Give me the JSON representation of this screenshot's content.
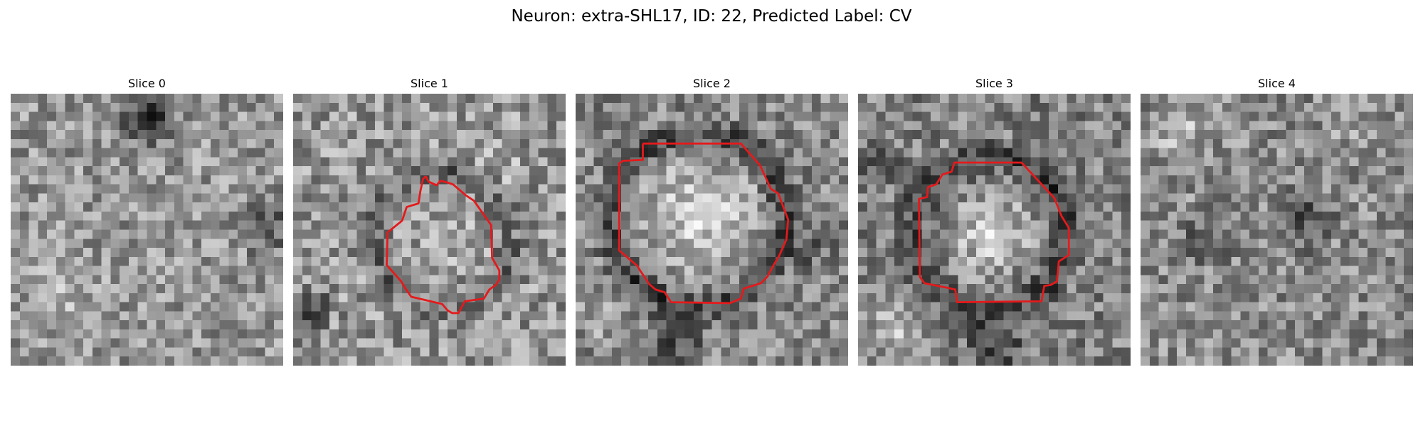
{
  "figure": {
    "title": "Neuron: extra-SHL17, ID: 22, Predicted Label: CV"
  },
  "colors": {
    "background": "#ffffff",
    "contour": "#e41a1c",
    "colormap": "grayscale"
  },
  "panels": [
    {
      "title": "Slice 0",
      "has_contour": false
    },
    {
      "title": "Slice 1",
      "has_contour": true
    },
    {
      "title": "Slice 2",
      "has_contour": true
    },
    {
      "title": "Slice 3",
      "has_contour": true
    },
    {
      "title": "Slice 4",
      "has_contour": false
    }
  ]
}
